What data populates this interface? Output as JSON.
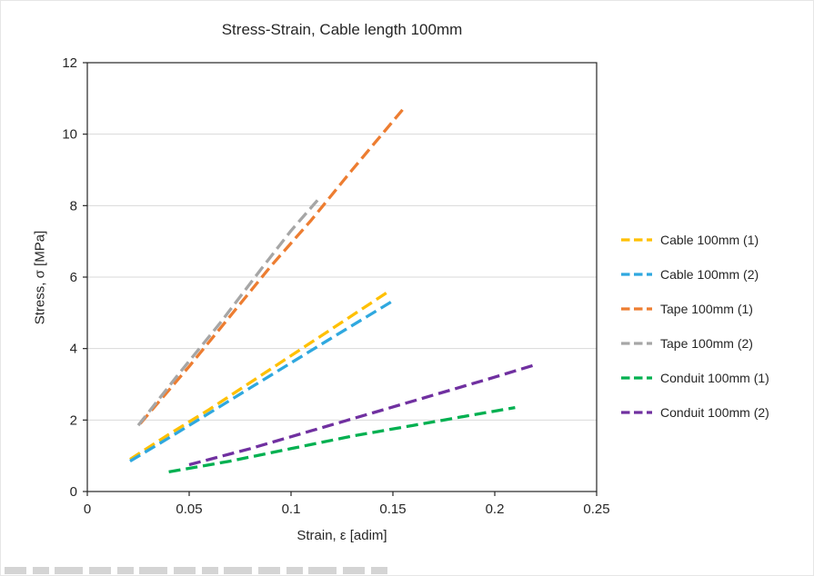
{
  "chart_data": {
    "type": "line",
    "title": "Stress-Strain, Cable length 100mm",
    "xlabel": "Strain, ε [adim]",
    "ylabel": "Stress, σ [MPa]",
    "xlim": [
      0,
      0.25
    ],
    "ylim": [
      0,
      12
    ],
    "xticks": [
      0,
      0.05,
      0.1,
      0.15,
      0.2,
      0.25
    ],
    "xtick_labels": [
      "0",
      "0.05",
      "0.1",
      "0.15",
      "0.2",
      "0.25"
    ],
    "yticks": [
      0,
      2,
      4,
      6,
      8,
      10,
      12
    ],
    "ytick_labels": [
      "0",
      "2",
      "4",
      "6",
      "8",
      "10",
      "12"
    ],
    "grid": "horizontal",
    "grid_color": "#D9D9D9",
    "axis_color": "#262626",
    "line_style": "dashed",
    "legend_position": "right",
    "series": [
      {
        "name": "Cable 100mm (1)",
        "color": "#FFC000",
        "x": [
          0.021,
          0.04,
          0.06,
          0.08,
          0.1,
          0.12,
          0.148
        ],
        "y": [
          0.9,
          1.6,
          2.3,
          3.05,
          3.8,
          4.55,
          5.6
        ]
      },
      {
        "name": "Cable 100mm (2)",
        "color": "#2FA8DF",
        "x": [
          0.021,
          0.04,
          0.06,
          0.08,
          0.1,
          0.12,
          0.149
        ],
        "y": [
          0.85,
          1.5,
          2.2,
          2.9,
          3.6,
          4.3,
          5.3
        ]
      },
      {
        "name": "Tape 100mm (1)",
        "color": "#ED7D31",
        "x": [
          0.026,
          0.05,
          0.07,
          0.09,
          0.11,
          0.13,
          0.155
        ],
        "y": [
          1.9,
          3.5,
          4.9,
          6.3,
          7.6,
          9.0,
          10.7
        ]
      },
      {
        "name": "Tape 100mm (2)",
        "color": "#A6A6A6",
        "x": [
          0.025,
          0.045,
          0.065,
          0.085,
          0.1,
          0.113
        ],
        "y": [
          1.85,
          3.3,
          4.7,
          6.2,
          7.3,
          8.15
        ]
      },
      {
        "name": "Conduit 100mm (1)",
        "color": "#00B050",
        "x": [
          0.04,
          0.07,
          0.1,
          0.13,
          0.16,
          0.19,
          0.21
        ],
        "y": [
          0.55,
          0.85,
          1.2,
          1.55,
          1.85,
          2.15,
          2.35
        ]
      },
      {
        "name": "Conduit 100mm (2)",
        "color": "#7030A0",
        "x": [
          0.05,
          0.08,
          0.11,
          0.14,
          0.17,
          0.2,
          0.22
        ],
        "y": [
          0.75,
          1.2,
          1.7,
          2.2,
          2.7,
          3.2,
          3.55
        ]
      }
    ]
  }
}
